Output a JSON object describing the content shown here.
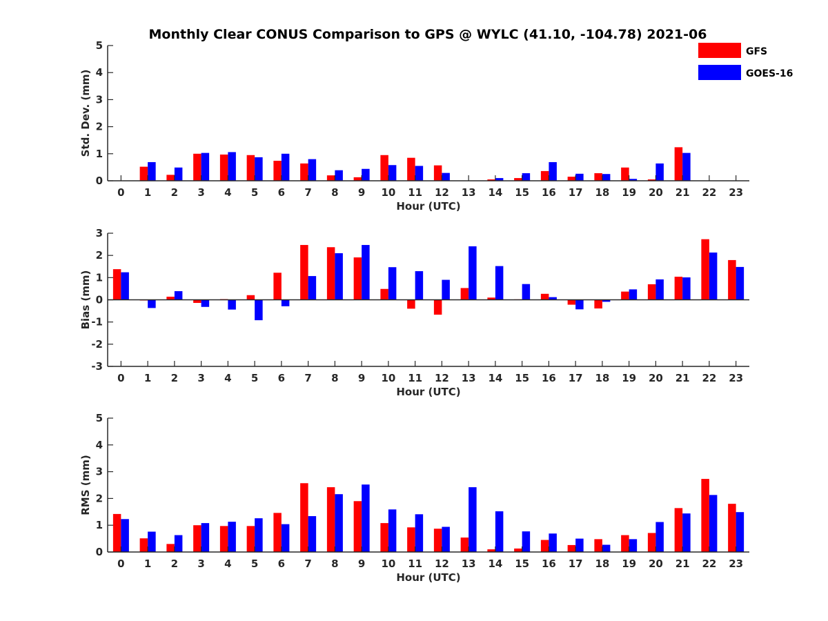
{
  "chart_data": {
    "title": "Monthly Clear CONUS Comparison to GPS @ WYLC (41.10, -104.78) 2021-06",
    "legend": {
      "placement": "top-right",
      "entries": [
        {
          "label": "GFS",
          "color": "#ff0000"
        },
        {
          "label": "GOES-16",
          "color": "#0000ff"
        }
      ]
    },
    "subplots": [
      {
        "type": "bar",
        "ylabel": "Std. Dev. (mm)",
        "xlabel": "Hour (UTC)",
        "ylim": [
          0,
          5
        ],
        "yticks": [
          0,
          1,
          2,
          3,
          4,
          5
        ],
        "categories": [
          "0",
          "1",
          "2",
          "3",
          "4",
          "5",
          "6",
          "7",
          "8",
          "9",
          "10",
          "11",
          "12",
          "13",
          "14",
          "15",
          "16",
          "17",
          "18",
          "19",
          "20",
          "21",
          "22",
          "23"
        ],
        "series": [
          {
            "name": "GFS",
            "color": "#ff0000",
            "values": [
              null,
              0.52,
              0.22,
              1.0,
              0.97,
              0.95,
              0.74,
              0.64,
              0.2,
              0.13,
              0.95,
              0.85,
              0.57,
              null,
              0.05,
              0.1,
              0.36,
              0.15,
              0.28,
              0.49,
              0.05,
              1.24,
              null,
              null
            ]
          },
          {
            "name": "GOES-16",
            "color": "#0000ff",
            "values": [
              null,
              0.69,
              0.49,
              1.03,
              1.06,
              0.87,
              1.0,
              0.8,
              0.39,
              0.44,
              0.58,
              0.55,
              0.29,
              null,
              0.1,
              0.28,
              0.69,
              0.26,
              0.25,
              0.07,
              0.64,
              1.03,
              null,
              null
            ]
          }
        ]
      },
      {
        "type": "bar",
        "ylabel": "Bias (mm)",
        "xlabel": "Hour (UTC)",
        "ylim": [
          -3,
          3
        ],
        "yticks": [
          -3,
          -2,
          -1,
          0,
          1,
          2,
          3
        ],
        "categories": [
          "0",
          "1",
          "2",
          "3",
          "4",
          "5",
          "6",
          "7",
          "8",
          "9",
          "10",
          "11",
          "12",
          "13",
          "14",
          "15",
          "16",
          "17",
          "18",
          "19",
          "20",
          "21",
          "22",
          "23"
        ],
        "series": [
          {
            "name": "GFS",
            "color": "#ff0000",
            "values": [
              1.38,
              -0.03,
              0.14,
              -0.14,
              0.03,
              0.21,
              1.22,
              2.47,
              2.37,
              1.91,
              0.49,
              -0.4,
              -0.67,
              0.53,
              0.1,
              0.02,
              0.27,
              -0.22,
              -0.39,
              0.37,
              0.7,
              1.04,
              2.73,
              1.79
            ]
          },
          {
            "name": "GOES-16",
            "color": "#0000ff",
            "values": [
              1.24,
              -0.37,
              0.39,
              -0.32,
              -0.44,
              -0.92,
              -0.29,
              1.07,
              2.1,
              2.47,
              1.47,
              1.29,
              0.9,
              2.41,
              1.52,
              0.71,
              0.12,
              -0.43,
              -0.09,
              0.47,
              0.92,
              1.01,
              2.13,
              1.48
            ]
          }
        ]
      },
      {
        "type": "bar",
        "ylabel": "RMS (mm)",
        "xlabel": "Hour (UTC)",
        "ylim": [
          0,
          5
        ],
        "yticks": [
          0,
          1,
          2,
          3,
          4,
          5
        ],
        "categories": [
          "0",
          "1",
          "2",
          "3",
          "4",
          "5",
          "6",
          "7",
          "8",
          "9",
          "10",
          "11",
          "12",
          "13",
          "14",
          "15",
          "16",
          "17",
          "18",
          "19",
          "20",
          "21",
          "22",
          "23"
        ],
        "series": [
          {
            "name": "GFS",
            "color": "#ff0000",
            "values": [
              1.42,
              0.51,
              0.3,
              1.0,
              0.97,
              0.97,
              1.46,
              2.57,
              2.42,
              1.9,
              1.08,
              0.92,
              0.87,
              0.54,
              0.1,
              0.13,
              0.45,
              0.26,
              0.48,
              0.63,
              0.71,
              1.64,
              2.73,
              1.8
            ]
          },
          {
            "name": "GOES-16",
            "color": "#0000ff",
            "values": [
              1.23,
              0.76,
              0.63,
              1.08,
              1.13,
              1.26,
              1.04,
              1.34,
              2.16,
              2.52,
              1.59,
              1.41,
              0.94,
              2.42,
              1.52,
              0.77,
              0.69,
              0.5,
              0.27,
              0.48,
              1.12,
              1.44,
              2.13,
              1.49
            ]
          }
        ]
      }
    ]
  }
}
